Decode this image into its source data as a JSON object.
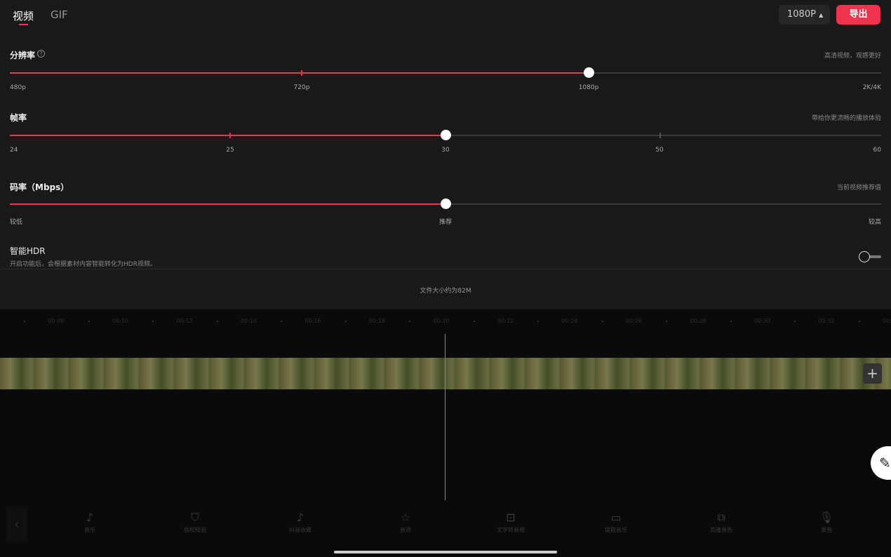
{
  "tabs": [
    {
      "label": "视频",
      "active": true
    },
    {
      "label": "GIF",
      "active": false
    }
  ],
  "header": {
    "resolution_select": "1080P",
    "export_label": "导出",
    "accent": "#f0344f"
  },
  "resolution": {
    "title": "分辨率",
    "hint": "高清视频，观感更好",
    "options": [
      "480p",
      "720p",
      "1080p",
      "2K/4K"
    ],
    "selected": "1080p"
  },
  "framerate": {
    "title": "帧率",
    "hint": "带给你更流畅的播放体验",
    "options": [
      "24",
      "25",
      "30",
      "50",
      "60"
    ],
    "selected": "30"
  },
  "bitrate": {
    "title": "码率（Mbps）",
    "hint": "当前视频推荐值",
    "labels": [
      "较低",
      "推荐",
      "较高"
    ],
    "value_percent": 50
  },
  "hdr": {
    "title": "智能HDR",
    "description": "开启功能后，会根据素材内容智能转化为HDR视频。",
    "enabled": false
  },
  "file_size": "文件大小约为82M",
  "timeline": {
    "labels": [
      "00:08",
      "00:10",
      "00:12",
      "00:14",
      "00:16",
      "00:18",
      "00:20",
      "00:22",
      "00:24",
      "00:26",
      "00:28",
      "00:30",
      "00:32",
      "00:34"
    ]
  },
  "toolbar": [
    {
      "label": "音乐",
      "icon": "music-note-icon"
    },
    {
      "label": "版权校验",
      "icon": "shield-icon"
    },
    {
      "label": "抖音收藏",
      "icon": "tiktok-icon"
    },
    {
      "label": "音效",
      "icon": "star-sound-icon"
    },
    {
      "label": "文字转音频",
      "icon": "text-to-audio-icon"
    },
    {
      "label": "提取音乐",
      "icon": "folder-icon"
    },
    {
      "label": "克隆音色",
      "icon": "clone-voice-icon"
    },
    {
      "label": "录音",
      "icon": "microphone-icon"
    }
  ]
}
